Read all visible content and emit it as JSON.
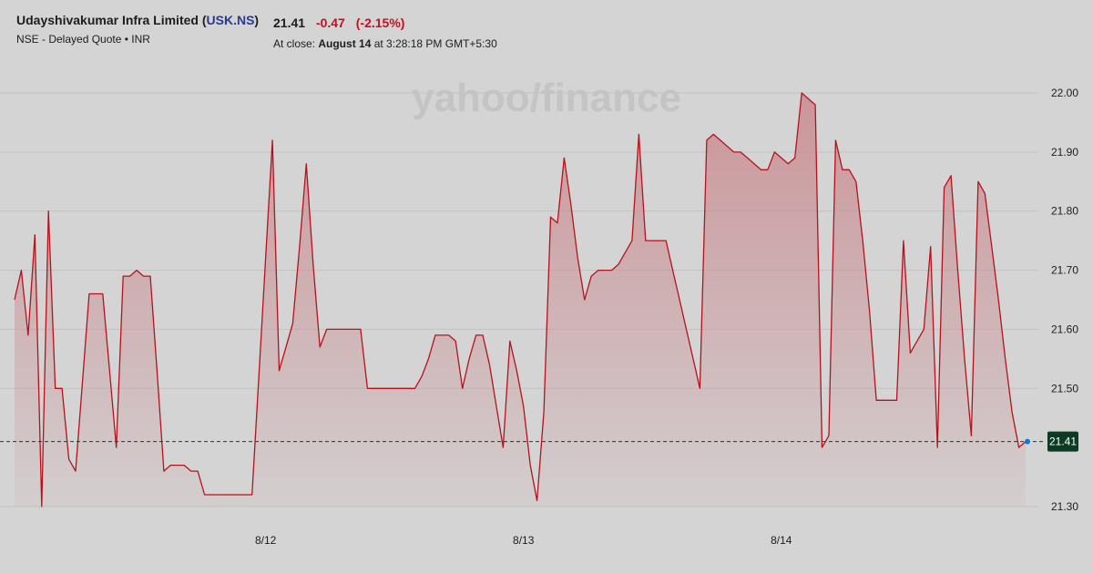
{
  "header": {
    "company": "Udayshivakumar Infra Limited",
    "ticker": "USK.NS",
    "subline": "NSE - Delayed Quote • INR",
    "price": "21.41",
    "change": "-0.47",
    "change_pct": "(-2.15%)",
    "close_prefix": "At close: ",
    "close_date": "August 14",
    "close_suffix": " at 3:28:18 PM GMT+5:30"
  },
  "watermark": "yahoo/finance",
  "colors": {
    "line": "#b5121b",
    "fill": "#c98a8f",
    "background": "#d4d4d4",
    "badge": "#0c3b24",
    "dot": "#1b74d0"
  },
  "chart_data": {
    "type": "area",
    "title": "",
    "xlabel": "",
    "ylabel": "",
    "ylim": [
      21.28,
      22.02
    ],
    "yticks": [
      22.0,
      21.9,
      21.8,
      21.7,
      21.6,
      21.5,
      21.3
    ],
    "ytick_labels": [
      "22.00",
      "21.90",
      "21.80",
      "21.70",
      "21.60",
      "21.50",
      "21.30"
    ],
    "xticks": [
      {
        "label": "8/12",
        "index": 37
      },
      {
        "label": "8/13",
        "index": 75
      },
      {
        "label": "8/14",
        "index": 113
      }
    ],
    "last_value": 21.41,
    "last_label": "21.41",
    "grid": true,
    "values": [
      21.65,
      21.7,
      21.59,
      21.76,
      21.3,
      21.8,
      21.5,
      21.5,
      21.38,
      21.36,
      21.51,
      21.66,
      21.66,
      21.66,
      21.53,
      21.4,
      21.69,
      21.69,
      21.7,
      21.69,
      21.69,
      21.53,
      21.36,
      21.37,
      21.37,
      21.37,
      21.36,
      21.36,
      21.32,
      21.32,
      21.32,
      21.32,
      21.32,
      21.32,
      21.32,
      21.32,
      21.52,
      21.72,
      21.92,
      21.53,
      21.57,
      21.61,
      21.74,
      21.88,
      21.71,
      21.57,
      21.6,
      21.6,
      21.6,
      21.6,
      21.6,
      21.6,
      21.5,
      21.5,
      21.5,
      21.5,
      21.5,
      21.5,
      21.5,
      21.5,
      21.52,
      21.55,
      21.59,
      21.59,
      21.59,
      21.58,
      21.5,
      21.55,
      21.59,
      21.59,
      21.54,
      21.47,
      21.4,
      21.58,
      21.53,
      21.47,
      21.37,
      21.31,
      21.46,
      21.79,
      21.78,
      21.89,
      21.81,
      21.72,
      21.65,
      21.69,
      21.7,
      21.7,
      21.7,
      21.71,
      21.73,
      21.75,
      21.93,
      21.75,
      21.75,
      21.75,
      21.75,
      21.7,
      21.65,
      21.6,
      21.55,
      21.5,
      21.92,
      21.93,
      21.92,
      21.91,
      21.9,
      21.9,
      21.89,
      21.88,
      21.87,
      21.87,
      21.9,
      21.89,
      21.88,
      21.89,
      22.0,
      21.99,
      21.98,
      21.4,
      21.42,
      21.92,
      21.87,
      21.87,
      21.85,
      21.75,
      21.63,
      21.48,
      21.48,
      21.48,
      21.48,
      21.75,
      21.56,
      21.58,
      21.6,
      21.74,
      21.4,
      21.84,
      21.86,
      21.7,
      21.55,
      21.42,
      21.85,
      21.83,
      21.74,
      21.65,
      21.55,
      21.46,
      21.4,
      21.41
    ]
  }
}
